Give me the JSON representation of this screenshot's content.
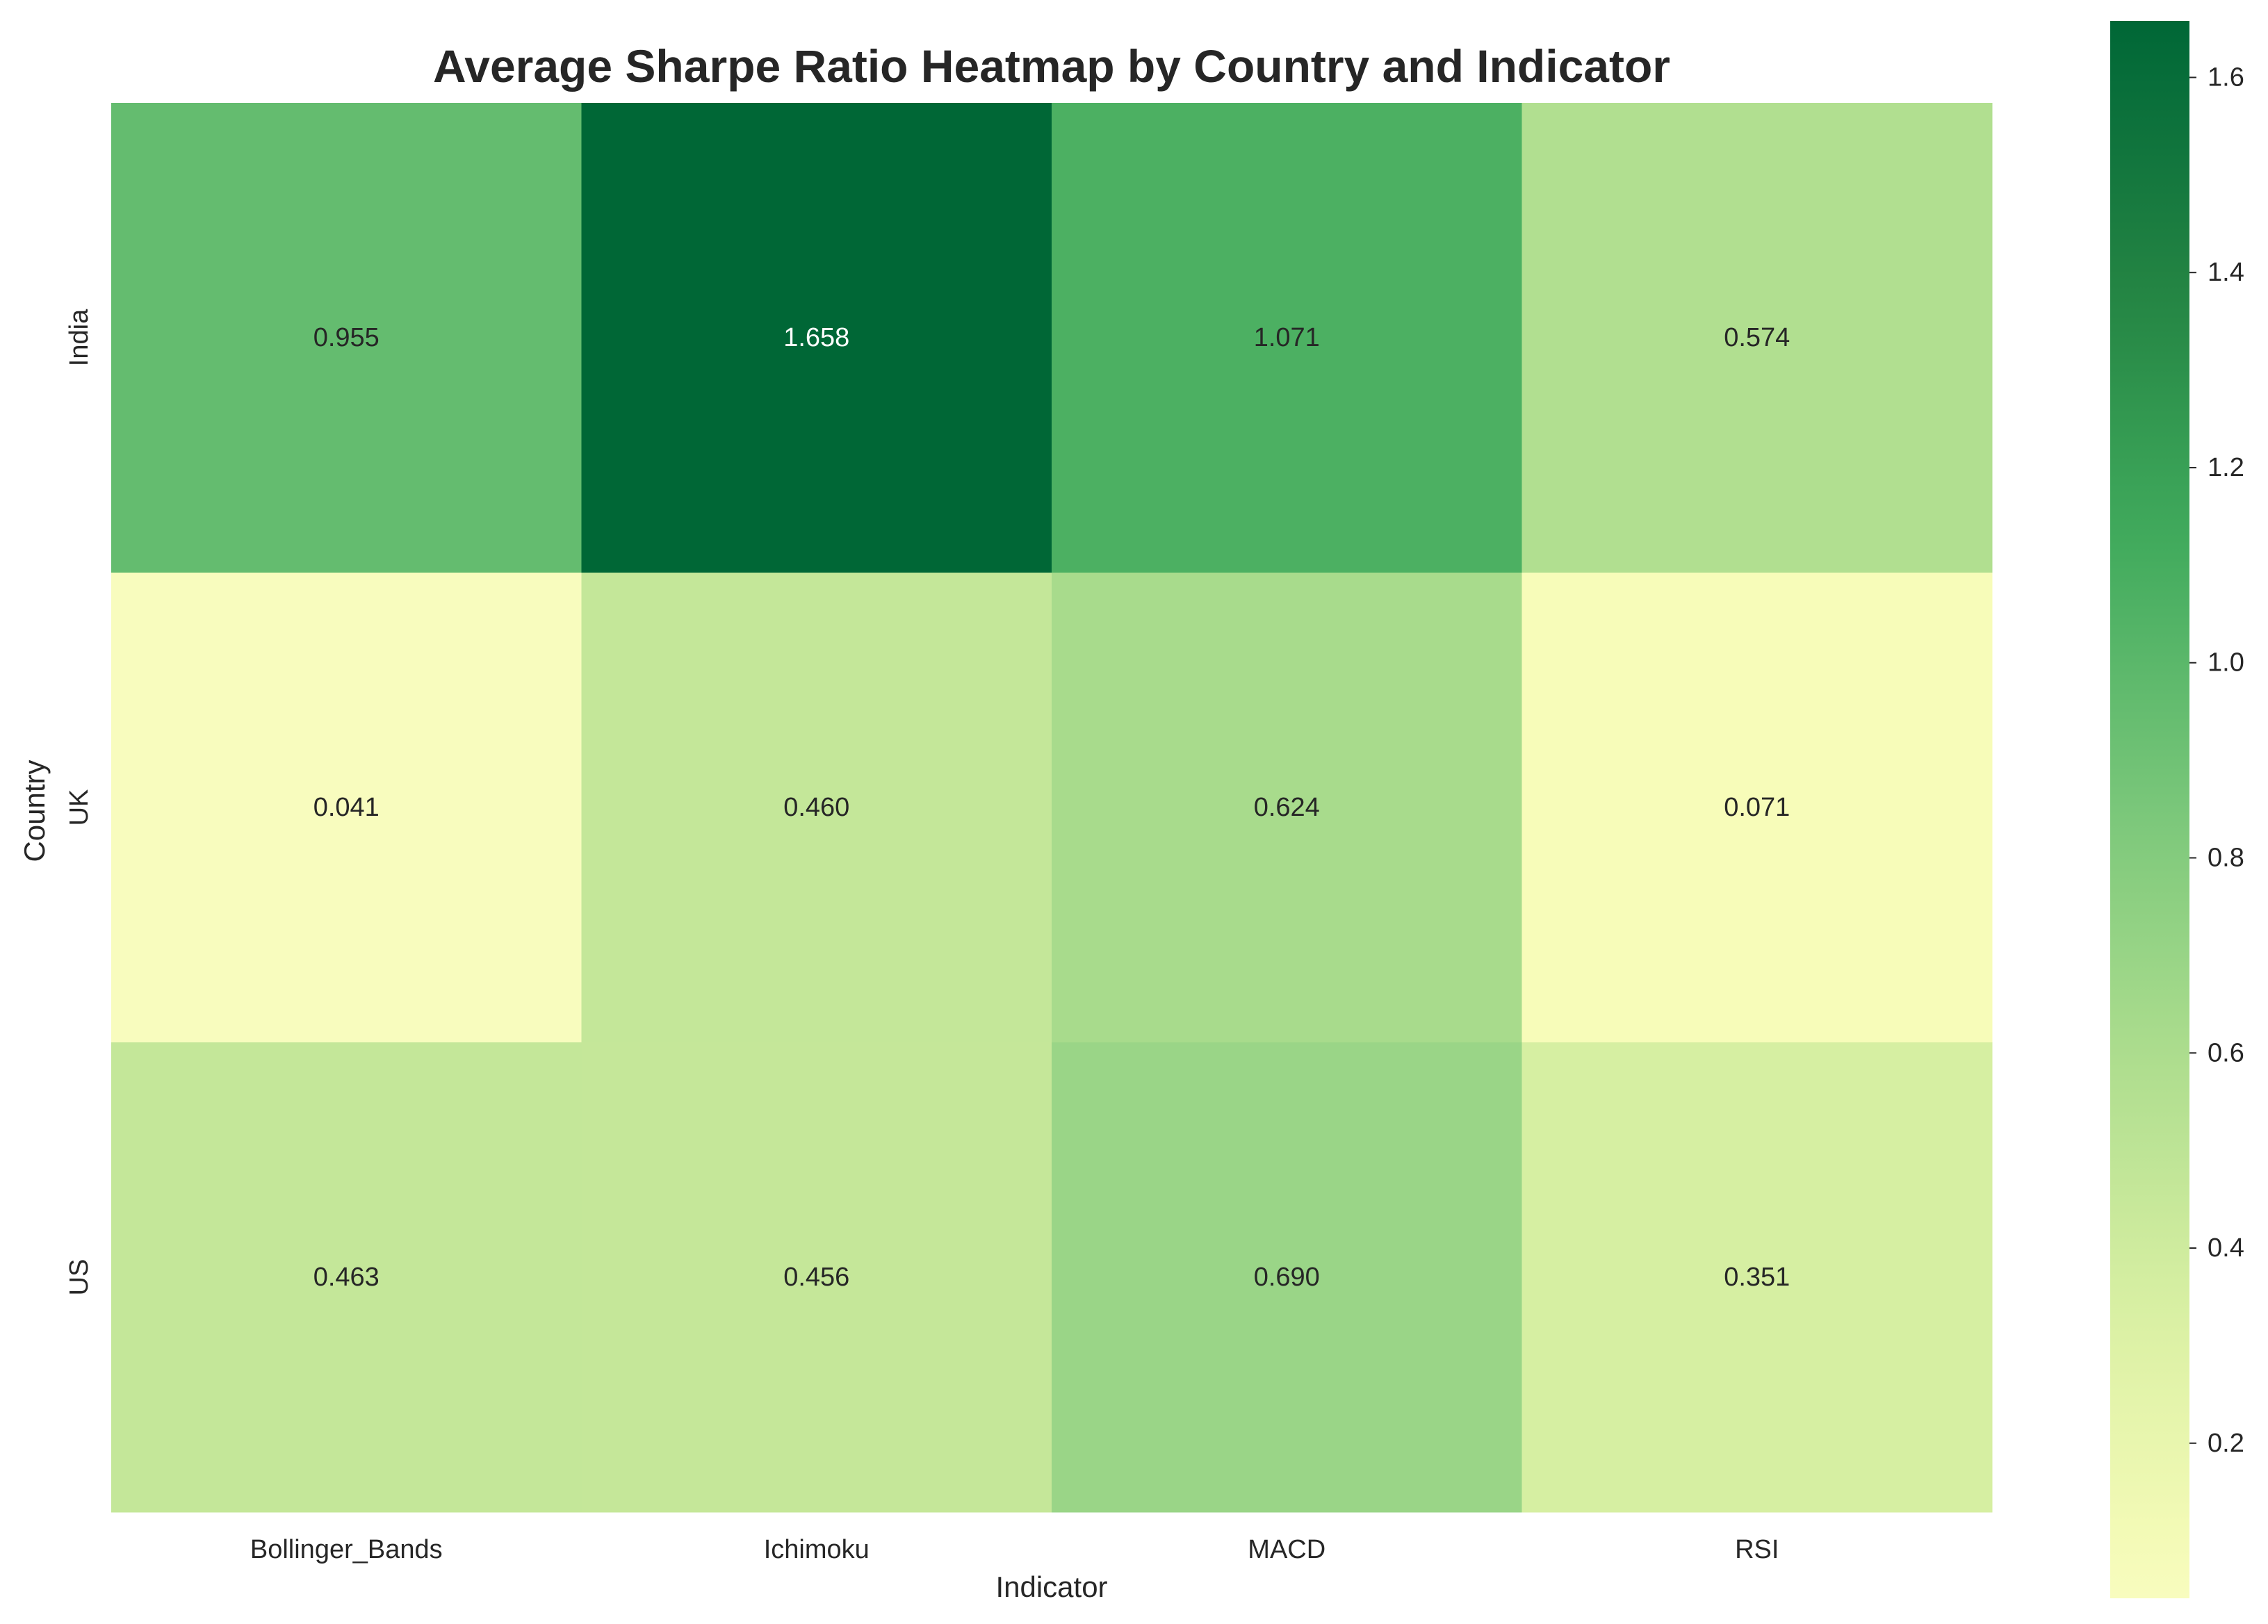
{
  "chart_data": {
    "type": "heatmap",
    "title": "Average Sharpe Ratio Heatmap by Country and Indicator",
    "xlabel": "Indicator",
    "ylabel": "Country",
    "x_categories": [
      "Bollinger_Bands",
      "Ichimoku",
      "MACD",
      "RSI"
    ],
    "y_categories": [
      "India",
      "UK",
      "US"
    ],
    "values": [
      [
        0.955,
        1.658,
        1.071,
        0.574
      ],
      [
        0.041,
        0.46,
        0.624,
        0.071
      ],
      [
        0.463,
        0.456,
        0.69,
        0.351
      ]
    ],
    "value_labels": [
      [
        "0.955",
        "1.658",
        "1.071",
        "0.574"
      ],
      [
        "0.041",
        "0.460",
        "0.624",
        "0.071"
      ],
      [
        "0.463",
        "0.456",
        "0.690",
        "0.351"
      ]
    ],
    "colormap": "YlGn",
    "vmin": 0.041,
    "vmax": 1.658,
    "colorbar_ticks": [
      0.2,
      0.4,
      0.6,
      0.8,
      1.0,
      1.2,
      1.4,
      1.6
    ],
    "colorbar_tick_labels": [
      "0.2",
      "0.4",
      "0.6",
      "0.8",
      "1.0",
      "1.2",
      "1.4",
      "1.6"
    ],
    "grid": false,
    "colorbar_position": "right"
  }
}
